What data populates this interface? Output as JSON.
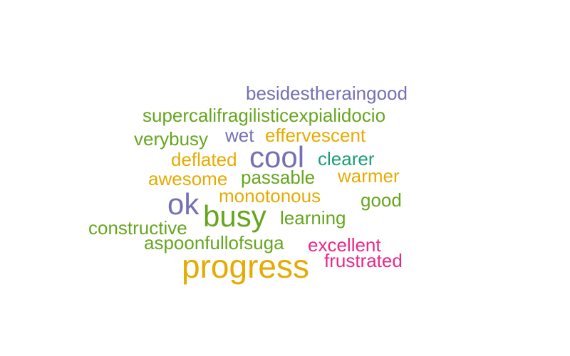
{
  "palette": {
    "purple": "#7570b3",
    "green": "#66a61e",
    "gold": "#e6ab02",
    "teal": "#1b9e77",
    "magenta": "#e7298a"
  },
  "words": [
    {
      "text": "besidestheraingood",
      "color": "#7570b3"
    },
    {
      "text": "supercalifragilisticexpialidocio",
      "color": "#66a61e"
    },
    {
      "text": "verybusy",
      "color": "#66a61e"
    },
    {
      "text": "wet",
      "color": "#7570b3"
    },
    {
      "text": "effervescent",
      "color": "#e6ab02"
    },
    {
      "text": "deflated",
      "color": "#e6ab02"
    },
    {
      "text": "cool",
      "color": "#7570b3"
    },
    {
      "text": "clearer",
      "color": "#1b9e77"
    },
    {
      "text": "awesome",
      "color": "#e6ab02"
    },
    {
      "text": "passable",
      "color": "#66a61e"
    },
    {
      "text": "warmer",
      "color": "#e6ab02"
    },
    {
      "text": "monotonous",
      "color": "#e6ab02"
    },
    {
      "text": "ok",
      "color": "#7570b3"
    },
    {
      "text": "good",
      "color": "#66a61e"
    },
    {
      "text": "busy",
      "color": "#66a61e"
    },
    {
      "text": "learning",
      "color": "#66a61e"
    },
    {
      "text": "constructive",
      "color": "#66a61e"
    },
    {
      "text": "aspoonfullofsuga",
      "color": "#66a61e"
    },
    {
      "text": "excellent",
      "color": "#e7298a"
    },
    {
      "text": "frustrated",
      "color": "#e7298a"
    },
    {
      "text": "progress",
      "color": "#e6ab02"
    }
  ]
}
